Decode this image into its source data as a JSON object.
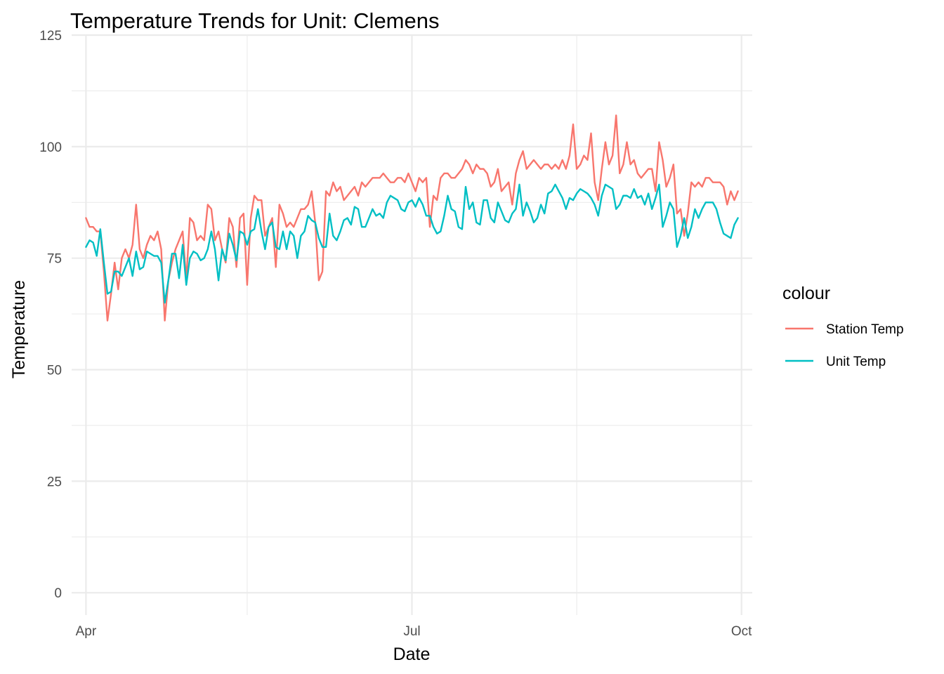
{
  "chart_data": {
    "type": "line",
    "title": "Temperature Trends for Unit: Clemens",
    "xlabel": "Date",
    "ylabel": "Temperature",
    "ylim": [
      -5,
      125
    ],
    "xlim": [
      "2023-03-28",
      "2023-10-04"
    ],
    "x_ticks": [
      {
        "date": "2023-04-01",
        "label": "Apr"
      },
      {
        "date": "2023-07-01",
        "label": "Jul"
      },
      {
        "date": "2023-10-01",
        "label": "Oct"
      }
    ],
    "x_minor_ticks": [
      "2023-05-16",
      "2023-08-16"
    ],
    "y_ticks": [
      0,
      25,
      50,
      75,
      100,
      125
    ],
    "y_minor_ticks": [
      12.5,
      37.5,
      62.5,
      87.5,
      112.5
    ],
    "grid": true,
    "x_start": "2023-04-01",
    "legend": {
      "title": "colour",
      "position": "right"
    },
    "series": [
      {
        "name": "Station Temp",
        "color": "#F8766D",
        "values": [
          84,
          82,
          82,
          81,
          81,
          72,
          61,
          67,
          74,
          68,
          75,
          77,
          75,
          78,
          87,
          77,
          75,
          78,
          80,
          79,
          81,
          77,
          61,
          70,
          74,
          77,
          79,
          81,
          70,
          84,
          83,
          79,
          80,
          79,
          87,
          86,
          79,
          81,
          77,
          74,
          84,
          82,
          73,
          84,
          85,
          69,
          84,
          89,
          88,
          88,
          80,
          82,
          84,
          73,
          87,
          85,
          82,
          83,
          82,
          84,
          86,
          86,
          87,
          90,
          83,
          70,
          72,
          90,
          89,
          92,
          90,
          91,
          88,
          89,
          90,
          91,
          89,
          92,
          91,
          92,
          93,
          93,
          93,
          94,
          93,
          92,
          92,
          93,
          93,
          92,
          94,
          92,
          90,
          93,
          92,
          93,
          82,
          89,
          88,
          93,
          94,
          94,
          93,
          93,
          94,
          95,
          97,
          96,
          94,
          96,
          95,
          95,
          94,
          91,
          92,
          95,
          90,
          91,
          92,
          87,
          94,
          97,
          99,
          95,
          96,
          97,
          96,
          95,
          96,
          96,
          95,
          96,
          95,
          97,
          95,
          98,
          105,
          95,
          96,
          98,
          97,
          103,
          92,
          88,
          95,
          101,
          96,
          98,
          107,
          94,
          96,
          101,
          96,
          97,
          94,
          93,
          94,
          95,
          95,
          90,
          101,
          97,
          91,
          93,
          96,
          85,
          86,
          80,
          85,
          92,
          91,
          92,
          91,
          93,
          93,
          92,
          92,
          92,
          91,
          87,
          90,
          88,
          90
        ]
      },
      {
        "name": "Unit Temp",
        "color": "#00BFC4",
        "values": [
          77.5,
          79,
          78.5,
          75.5,
          81.5,
          74,
          67,
          67.5,
          72,
          72,
          71,
          73,
          75,
          71,
          76.5,
          72.5,
          73,
          76.5,
          76,
          75.5,
          75.5,
          74,
          65,
          70,
          76,
          76,
          70.5,
          78,
          69,
          75,
          76.5,
          76,
          74.5,
          75,
          77,
          81,
          77,
          70,
          77,
          74.5,
          80.5,
          78,
          74.5,
          81,
          80.5,
          78,
          81,
          81.5,
          86,
          81,
          77,
          82,
          83,
          77.5,
          77,
          81,
          77,
          81,
          80,
          75,
          80,
          81,
          84.5,
          83.5,
          83,
          79.5,
          77.5,
          77.5,
          85,
          80,
          79,
          81,
          83.5,
          84,
          82.5,
          86.5,
          86,
          82,
          82,
          84,
          86,
          84.5,
          85,
          84,
          87.5,
          89,
          88.5,
          88,
          86,
          85.5,
          87.5,
          88,
          86.5,
          88.5,
          87,
          84.5,
          84.5,
          82,
          80.5,
          81,
          84.5,
          89,
          86,
          85.5,
          82,
          81.5,
          91,
          86,
          87.5,
          83,
          82.5,
          88,
          88,
          84,
          83,
          87.5,
          85.5,
          83.5,
          83,
          85,
          86,
          91.5,
          84.5,
          87.5,
          85.5,
          83,
          84,
          87,
          85,
          89.5,
          90,
          91.5,
          90,
          88.5,
          86,
          88.5,
          88,
          89.5,
          90.5,
          90,
          89.5,
          88.5,
          87,
          84.5,
          89,
          91.5,
          91,
          90.5,
          86,
          87,
          89,
          89,
          88.5,
          90.5,
          88.5,
          89,
          87,
          89.5,
          86,
          88.5,
          91.5,
          82,
          84.5,
          87.5,
          86,
          77.5,
          80,
          84,
          79.5,
          82,
          86,
          84,
          86,
          87.5,
          87.5,
          87.5,
          86,
          83,
          80.5,
          80,
          79.5,
          82.5,
          84
        ]
      }
    ]
  }
}
